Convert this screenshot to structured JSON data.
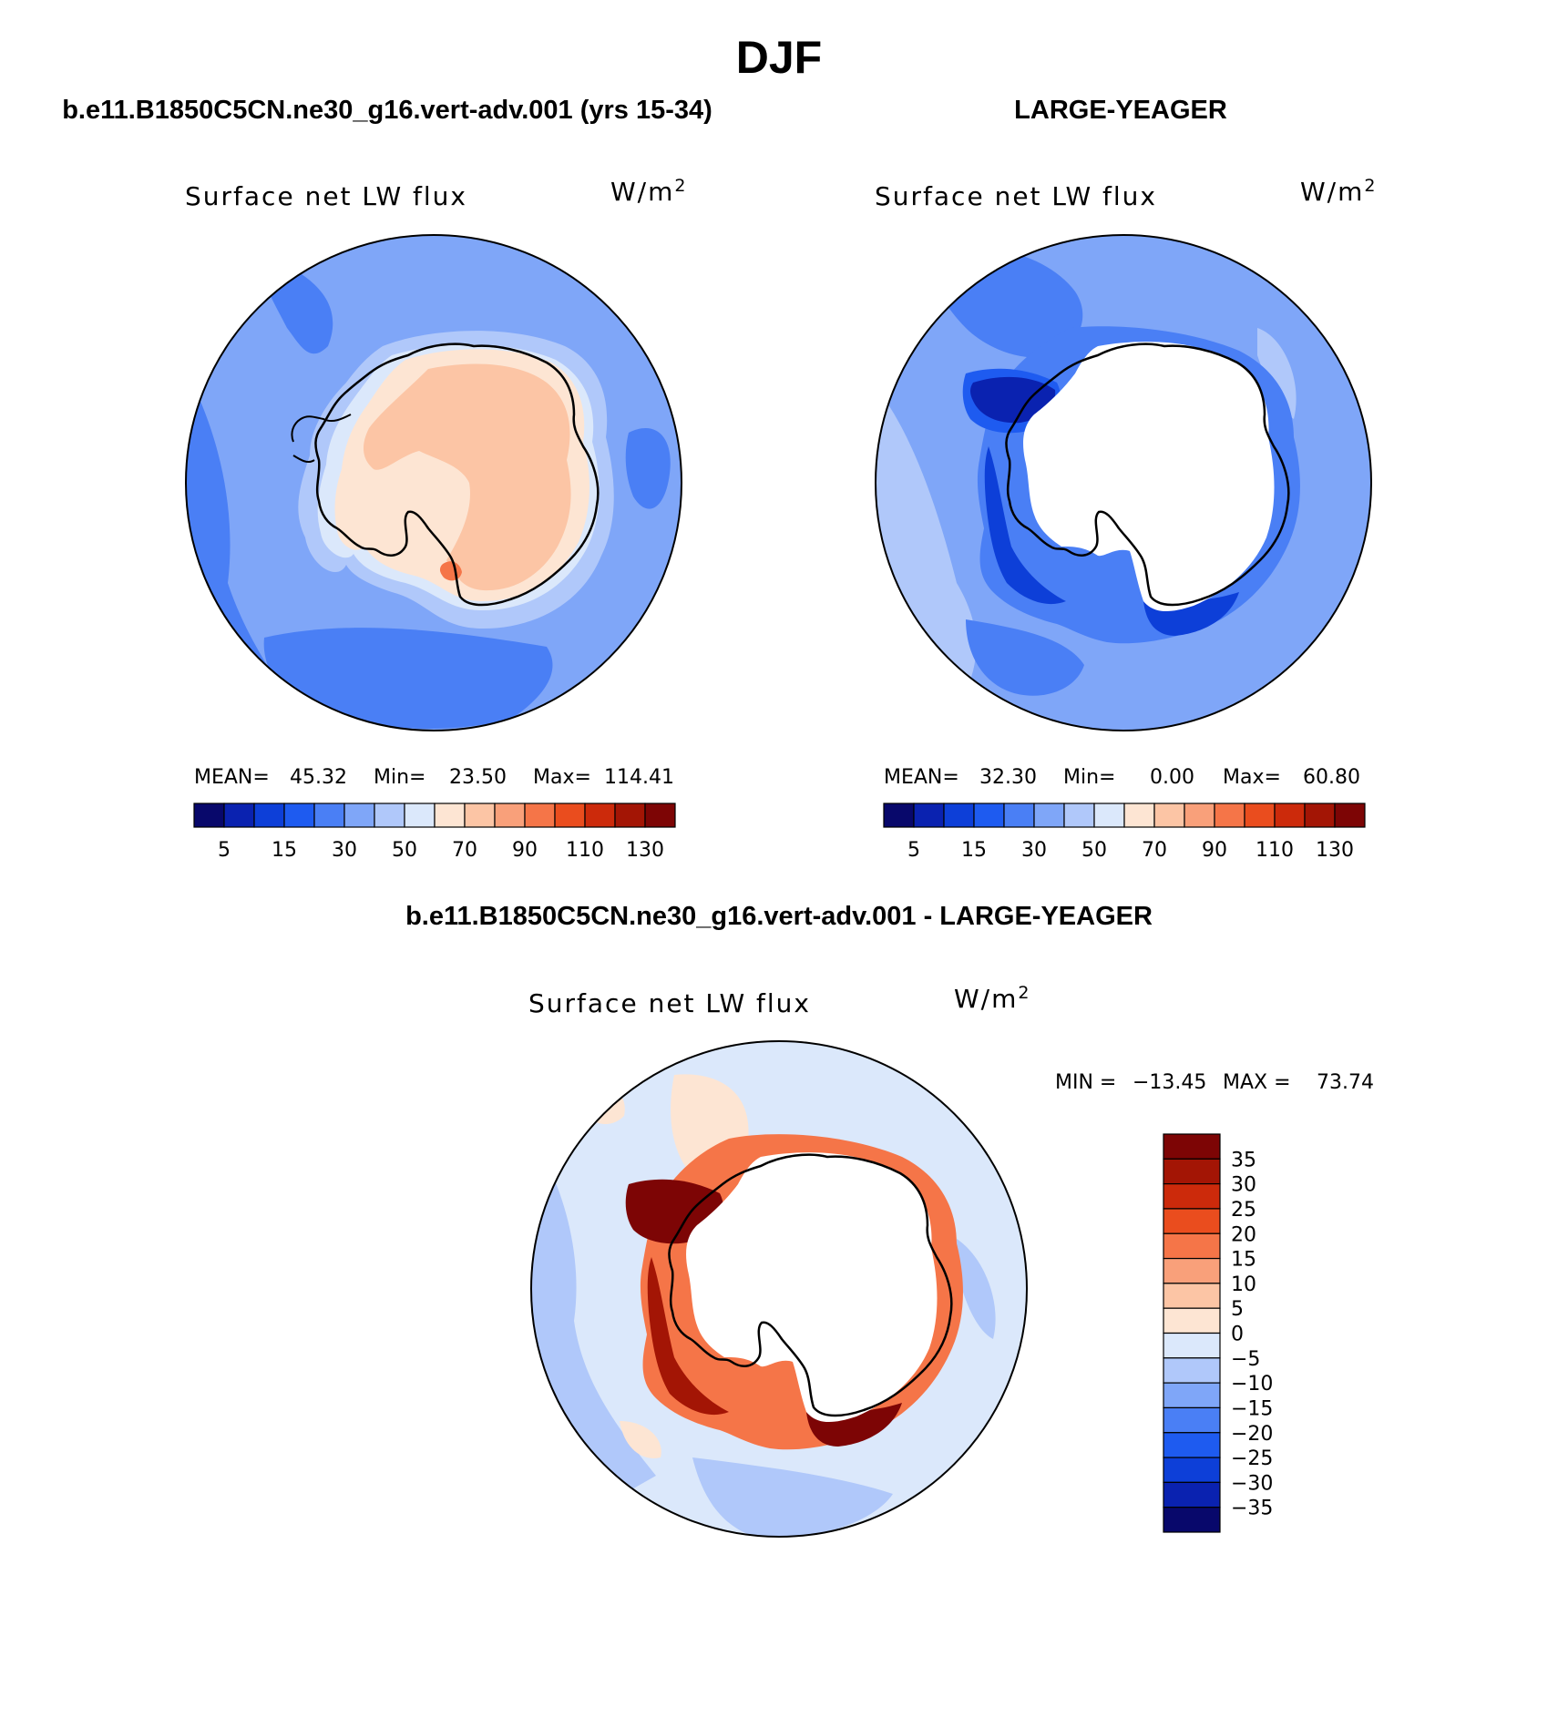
{
  "title": "DJF",
  "panels": [
    {
      "header": "b.e11.B1850C5CN.ne30_g16.vert-adv.001 (yrs 15-34)",
      "left_title": "Surface net LW flux",
      "units": "W/m",
      "units_exp": "2",
      "stats": {
        "mean_label": "MEAN=",
        "mean": "45.32",
        "min_label": "Min=",
        "min": "23.50",
        "max_label": "Max=",
        "max": "114.41"
      },
      "colorbar_labels": [
        "5",
        "15",
        "30",
        "50",
        "70",
        "90",
        "110",
        "130"
      ]
    },
    {
      "header": "LARGE-YEAGER",
      "left_title": "Surface net LW flux",
      "units": "W/m",
      "units_exp": "2",
      "stats": {
        "mean_label": "MEAN=",
        "mean": "32.30",
        "min_label": "Min=",
        "min": "0.00",
        "max_label": "Max=",
        "max": "60.80"
      },
      "colorbar_labels": [
        "5",
        "15",
        "30",
        "50",
        "70",
        "90",
        "110",
        "130"
      ]
    },
    {
      "header": "b.e11.B1850C5CN.ne30_g16.vert-adv.001 - LARGE-YEAGER",
      "left_title": "Surface net LW flux",
      "units": "W/m",
      "units_exp": "2",
      "stats": {
        "min_label": "MIN =",
        "min": "−13.45",
        "max_label": "MAX =",
        "max": "73.74"
      },
      "colorbar_labels": [
        "35",
        "30",
        "25",
        "20",
        "15",
        "10",
        "5",
        "0",
        "−5",
        "−10",
        "−15",
        "−20",
        "−25",
        "−30",
        "−35"
      ]
    }
  ],
  "colors": {
    "abs_scale": [
      "#08086b",
      "#0a22b0",
      "#0d3fd8",
      "#1e5bf0",
      "#4a7ff5",
      "#7fa6f8",
      "#b0c8fa",
      "#dbe8fb",
      "#fde5d3",
      "#fcc5a5",
      "#f9a07a",
      "#f57548",
      "#ea4d1e",
      "#cc2a0b",
      "#a31505",
      "#7d0505"
    ],
    "diff_scale": [
      "#7d0505",
      "#a31505",
      "#cc2a0b",
      "#ea4d1e",
      "#f57548",
      "#f9a07a",
      "#fcc5a5",
      "#fde5d3",
      "#dbe8fb",
      "#b0c8fa",
      "#7fa6f8",
      "#4a7ff5",
      "#1e5bf0",
      "#0d3fd8",
      "#0a22b0",
      "#08086b"
    ]
  },
  "chart_data": [
    {
      "type": "heatmap",
      "projection": "south-polar-stereographic",
      "variable": "Surface net LW flux",
      "units": "W/m2",
      "contour_levels": [
        5,
        10,
        15,
        20,
        30,
        40,
        50,
        60,
        70,
        80,
        90,
        100,
        110,
        120,
        130
      ],
      "stats": {
        "mean": 45.32,
        "min": 23.5,
        "max": 114.41
      },
      "regions": {
        "antarctic_interior": 75,
        "coastal_band": 55,
        "southern_ocean": 40,
        "open_ocean_pacific": 30
      }
    },
    {
      "type": "heatmap",
      "projection": "south-polar-stereographic",
      "variable": "Surface net LW flux",
      "units": "W/m2",
      "contour_levels": [
        5,
        10,
        15,
        20,
        30,
        40,
        50,
        60,
        70,
        80,
        90,
        100,
        110,
        120,
        130
      ],
      "stats": {
        "mean": 32.3,
        "min": 0.0,
        "max": 60.8
      },
      "regions": {
        "antarctic_interior": "missing",
        "coastal_band": 18,
        "weddell_sea": 8,
        "southern_ocean": 30
      }
    },
    {
      "type": "heatmap",
      "projection": "south-polar-stereographic",
      "variable": "Surface net LW flux difference",
      "units": "W/m2",
      "contour_levels": [
        -35,
        -30,
        -25,
        -20,
        -15,
        -10,
        -5,
        0,
        5,
        10,
        15,
        20,
        25,
        30,
        35
      ],
      "stats": {
        "min": -13.45,
        "max": 73.74
      },
      "regions": {
        "antarctic_interior": "missing",
        "coastal_band": 35,
        "weddell_sea": 40,
        "southern_ocean": -3
      }
    }
  ]
}
